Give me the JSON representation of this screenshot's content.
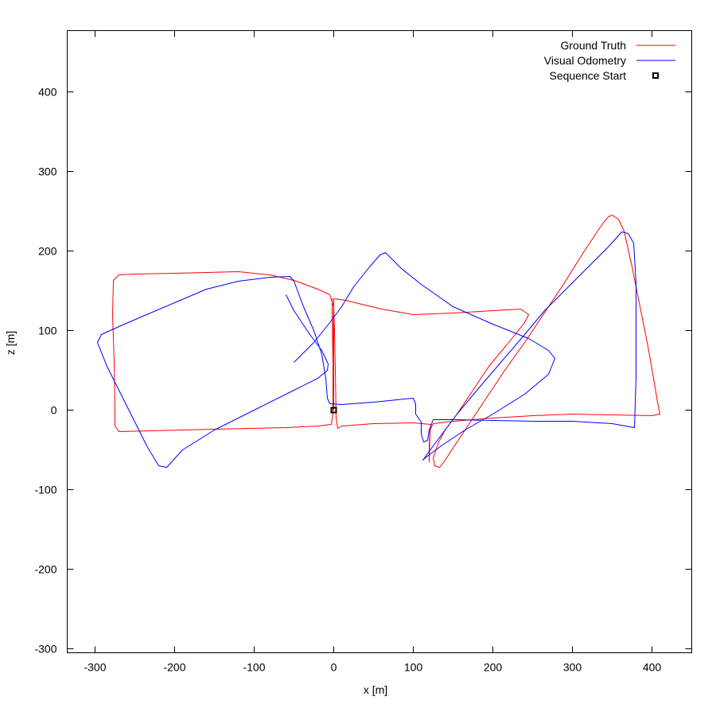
{
  "chart_data": {
    "type": "line",
    "xlabel": "x [m]",
    "ylabel": "z [m]",
    "xlim": [
      -335,
      450
    ],
    "ylim": [
      -305,
      477
    ],
    "xticks": [
      -300,
      -200,
      -100,
      0,
      100,
      200,
      300,
      400
    ],
    "yticks": [
      -300,
      -200,
      -100,
      0,
      100,
      200,
      300,
      400
    ],
    "grid": false,
    "legend_position": "top-right",
    "series": [
      {
        "name": "Ground Truth",
        "color": "#ff0000",
        "points": [
          [
            0,
            0
          ],
          [
            0,
            70
          ],
          [
            0,
            140
          ],
          [
            15,
            138
          ],
          [
            35,
            133
          ],
          [
            60,
            127
          ],
          [
            100,
            120
          ],
          [
            150,
            122
          ],
          [
            200,
            125
          ],
          [
            235,
            127
          ],
          [
            245,
            120
          ],
          [
            240,
            110
          ],
          [
            220,
            85
          ],
          [
            195,
            55
          ],
          [
            175,
            25
          ],
          [
            155,
            -5
          ],
          [
            140,
            -25
          ],
          [
            132,
            -40
          ],
          [
            125,
            -60
          ],
          [
            127,
            -70
          ],
          [
            133,
            -72
          ],
          [
            140,
            -63
          ],
          [
            155,
            -40
          ],
          [
            175,
            -10
          ],
          [
            195,
            20
          ],
          [
            215,
            50
          ],
          [
            240,
            85
          ],
          [
            260,
            115
          ],
          [
            290,
            160
          ],
          [
            315,
            200
          ],
          [
            335,
            230
          ],
          [
            345,
            243
          ],
          [
            350,
            245
          ],
          [
            358,
            240
          ],
          [
            365,
            225
          ],
          [
            375,
            180
          ],
          [
            385,
            130
          ],
          [
            395,
            80
          ],
          [
            402,
            40
          ],
          [
            407,
            10
          ],
          [
            410,
            -5
          ],
          [
            400,
            -7
          ],
          [
            350,
            -6
          ],
          [
            300,
            -5
          ],
          [
            250,
            -7
          ],
          [
            200,
            -10
          ],
          [
            150,
            -14
          ],
          [
            125,
            -17
          ],
          [
            121,
            -25
          ],
          [
            120,
            -45
          ],
          [
            120,
            -65
          ],
          [
            121,
            -30
          ],
          [
            122,
            -18
          ],
          [
            100,
            -16
          ],
          [
            50,
            -17
          ],
          [
            10,
            -20
          ],
          [
            5,
            -23
          ],
          [
            3,
            -10
          ],
          [
            2,
            50
          ],
          [
            1,
            100
          ],
          [
            0,
            130
          ],
          [
            -5,
            145
          ],
          [
            -20,
            152
          ],
          [
            -50,
            163
          ],
          [
            -80,
            170
          ],
          [
            -120,
            174
          ],
          [
            -160,
            173
          ],
          [
            -200,
            172
          ],
          [
            -250,
            171
          ],
          [
            -270,
            170
          ],
          [
            -277,
            163
          ],
          [
            -278,
            120
          ],
          [
            -276,
            60
          ],
          [
            -275,
            0
          ],
          [
            -275,
            -20
          ],
          [
            -270,
            -27
          ],
          [
            -230,
            -26
          ],
          [
            -150,
            -24
          ],
          [
            -60,
            -22
          ],
          [
            -20,
            -20
          ],
          [
            -3,
            -18
          ],
          [
            -1,
            -5
          ],
          [
            -1,
            60
          ],
          [
            -2,
            120
          ],
          [
            -2,
            140
          ],
          [
            -1,
            90
          ],
          [
            -1,
            30
          ],
          [
            0,
            0
          ]
        ]
      },
      {
        "name": "Visual Odometry",
        "color": "#0000ff",
        "points": [
          [
            -60,
            145
          ],
          [
            -50,
            125
          ],
          [
            -30,
            95
          ],
          [
            -15,
            75
          ],
          [
            -7,
            58
          ],
          [
            -8,
            50
          ],
          [
            -20,
            40
          ],
          [
            -50,
            25
          ],
          [
            -100,
            0
          ],
          [
            -150,
            -25
          ],
          [
            -190,
            -50
          ],
          [
            -210,
            -72
          ],
          [
            -220,
            -70
          ],
          [
            -235,
            -45
          ],
          [
            -260,
            5
          ],
          [
            -285,
            55
          ],
          [
            -297,
            85
          ],
          [
            -292,
            95
          ],
          [
            -270,
            105
          ],
          [
            -240,
            118
          ],
          [
            -200,
            135
          ],
          [
            -160,
            152
          ],
          [
            -120,
            162
          ],
          [
            -80,
            167
          ],
          [
            -55,
            168
          ],
          [
            -50,
            162
          ],
          [
            -38,
            130
          ],
          [
            -25,
            100
          ],
          [
            -15,
            70
          ],
          [
            -10,
            40
          ],
          [
            -8,
            15
          ],
          [
            -5,
            8
          ],
          [
            10,
            7
          ],
          [
            50,
            10
          ],
          [
            80,
            13
          ],
          [
            100,
            15
          ],
          [
            103,
            8
          ],
          [
            103,
            -5
          ],
          [
            110,
            -15
          ],
          [
            110,
            -30
          ],
          [
            113,
            -40
          ],
          [
            118,
            -38
          ],
          [
            120,
            -25
          ],
          [
            125,
            -12
          ],
          [
            150,
            -12
          ],
          [
            200,
            -13
          ],
          [
            250,
            -14
          ],
          [
            300,
            -14
          ],
          [
            350,
            -17
          ],
          [
            378,
            -22
          ],
          [
            380,
            40
          ],
          [
            380,
            100
          ],
          [
            380,
            160
          ],
          [
            377,
            210
          ],
          [
            370,
            222
          ],
          [
            362,
            224
          ],
          [
            345,
            205
          ],
          [
            320,
            180
          ],
          [
            290,
            150
          ],
          [
            265,
            125
          ],
          [
            240,
            95
          ],
          [
            210,
            60
          ],
          [
            180,
            25
          ],
          [
            155,
            -5
          ],
          [
            140,
            -25
          ],
          [
            125,
            -45
          ],
          [
            112,
            -63
          ],
          [
            115,
            -60
          ],
          [
            135,
            -45
          ],
          [
            165,
            -25
          ],
          [
            200,
            -5
          ],
          [
            240,
            20
          ],
          [
            270,
            45
          ],
          [
            278,
            65
          ],
          [
            270,
            75
          ],
          [
            245,
            90
          ],
          [
            200,
            108
          ],
          [
            150,
            130
          ],
          [
            110,
            158
          ],
          [
            85,
            178
          ],
          [
            65,
            198
          ],
          [
            58,
            195
          ],
          [
            45,
            180
          ],
          [
            25,
            155
          ],
          [
            10,
            130
          ],
          [
            -5,
            110
          ],
          [
            -25,
            85
          ],
          [
            -50,
            60
          ]
        ]
      },
      {
        "name": "Sequence Start",
        "color": "#000000",
        "points": [
          [
            0,
            0
          ]
        ]
      }
    ]
  }
}
